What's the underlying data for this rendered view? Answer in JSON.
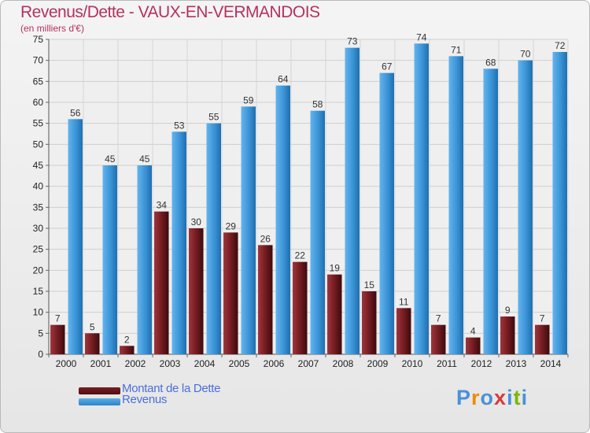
{
  "header": {
    "title": "Revenus/Dette - VAUX-EN-VERMANDOIS",
    "subtitle": "(en milliers d'€)"
  },
  "legend": [
    {
      "label": "Montant de la Dette",
      "color": "#7b1d22"
    },
    {
      "label": "Revenus",
      "color": "#3f94d6"
    }
  ],
  "logo": {
    "text": "Proxiti",
    "colors": [
      "#4a90d9",
      "#f08a00",
      "#4a90d9",
      "#d93a3a",
      "#4a90d9",
      "#7ab800",
      "#4a90d9"
    ]
  },
  "chart_data": {
    "type": "bar",
    "title": "Revenus/Dette - VAUX-EN-VERMANDOIS",
    "ylabel": "(en milliers d'€)",
    "categories": [
      "2000",
      "2001",
      "2002",
      "2003",
      "2004",
      "2005",
      "2006",
      "2007",
      "2008",
      "2009",
      "2010",
      "2011",
      "2012",
      "2013",
      "2014"
    ],
    "series": [
      {
        "name": "Montant de la Dette",
        "color": "#7b1d22",
        "values": [
          7,
          5,
          2,
          34,
          30,
          29,
          26,
          22,
          19,
          15,
          11,
          7,
          4,
          9,
          7
        ]
      },
      {
        "name": "Revenus",
        "color": "#3f94d6",
        "values": [
          56,
          45,
          45,
          53,
          55,
          59,
          64,
          58,
          73,
          67,
          74,
          71,
          68,
          70,
          72
        ]
      }
    ],
    "ylim": [
      0,
      75
    ],
    "yticks": [
      0,
      5,
      10,
      15,
      20,
      25,
      30,
      35,
      40,
      45,
      50,
      55,
      60,
      65,
      70,
      75
    ],
    "grid": true,
    "legend_position": "bottom-left"
  }
}
